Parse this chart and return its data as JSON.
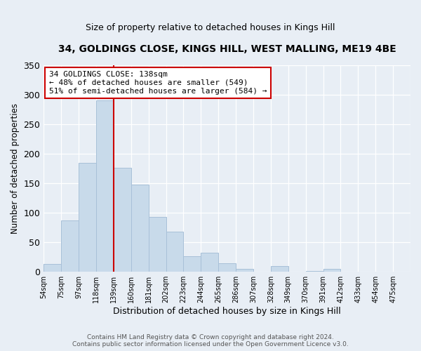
{
  "title": "34, GOLDINGS CLOSE, KINGS HILL, WEST MALLING, ME19 4BE",
  "subtitle": "Size of property relative to detached houses in Kings Hill",
  "xlabel": "Distribution of detached houses by size in Kings Hill",
  "ylabel": "Number of detached properties",
  "bar_color": "#c8daea",
  "bar_edge_color": "#a8c0d8",
  "categories": [
    "54sqm",
    "75sqm",
    "97sqm",
    "118sqm",
    "139sqm",
    "160sqm",
    "181sqm",
    "202sqm",
    "223sqm",
    "244sqm",
    "265sqm",
    "286sqm",
    "307sqm",
    "328sqm",
    "349sqm",
    "370sqm",
    "391sqm",
    "412sqm",
    "433sqm",
    "454sqm",
    "475sqm"
  ],
  "values": [
    13,
    87,
    185,
    290,
    176,
    148,
    93,
    68,
    27,
    32,
    15,
    5,
    0,
    10,
    0,
    2,
    5,
    0,
    0,
    0,
    0
  ],
  "marker_line_color": "#cc0000",
  "annotation_line1": "34 GOLDINGS CLOSE: 138sqm",
  "annotation_line2": "← 48% of detached houses are smaller (549)",
  "annotation_line3": "51% of semi-detached houses are larger (584) →",
  "annotation_box_color": "#ffffff",
  "annotation_box_edge": "#cc0000",
  "ylim": [
    0,
    350
  ],
  "yticks": [
    0,
    50,
    100,
    150,
    200,
    250,
    300,
    350
  ],
  "footer_text": "Contains HM Land Registry data © Crown copyright and database right 2024.\nContains public sector information licensed under the Open Government Licence v3.0.",
  "background_color": "#e8eef5",
  "plot_background": "#e8eef5",
  "grid_color": "#ffffff"
}
